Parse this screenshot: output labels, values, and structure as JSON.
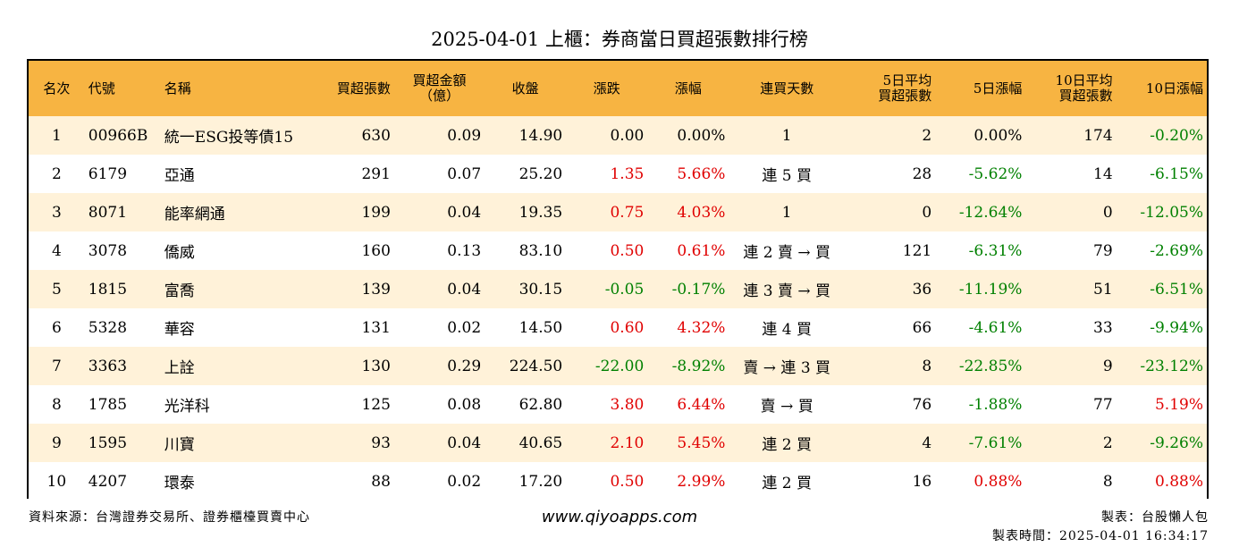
{
  "title": "2025-04-01 上櫃：券商當日買超張數排行榜",
  "headers": {
    "rank": "名次",
    "code": "代號",
    "name": "名稱",
    "buy_lots": [
      "買超張數"
    ],
    "buy_amount": [
      "買超金額",
      "（億）"
    ],
    "close": "收盤",
    "change": "漲跌",
    "change_pct": "漲幅",
    "consec_days": "連買天數",
    "avg5": [
      "5日平均",
      "買超張數"
    ],
    "pct5": "5日漲幅",
    "avg10": [
      "10日平均",
      "買超張數"
    ],
    "pct10": "10日漲幅"
  },
  "rows": [
    {
      "rank": "1",
      "code": "00966B",
      "name": "統一ESG投等債15",
      "lots": "630",
      "amount": "0.09",
      "close": "14.90",
      "change": "0.00",
      "change_pct": "0.00%",
      "days": "1",
      "avg5": "2",
      "pct5": "0.00%",
      "avg10": "174",
      "pct10": "-0.20%"
    },
    {
      "rank": "2",
      "code": "6179",
      "name": "亞通",
      "lots": "291",
      "amount": "0.07",
      "close": "25.20",
      "change": "1.35",
      "change_pct": "5.66%",
      "days": "連 5 買",
      "avg5": "28",
      "pct5": "-5.62%",
      "avg10": "14",
      "pct10": "-6.15%"
    },
    {
      "rank": "3",
      "code": "8071",
      "name": "能率網通",
      "lots": "199",
      "amount": "0.04",
      "close": "19.35",
      "change": "0.75",
      "change_pct": "4.03%",
      "days": "1",
      "avg5": "0",
      "pct5": "-12.64%",
      "avg10": "0",
      "pct10": "-12.05%"
    },
    {
      "rank": "4",
      "code": "3078",
      "name": "僑威",
      "lots": "160",
      "amount": "0.13",
      "close": "83.10",
      "change": "0.50",
      "change_pct": "0.61%",
      "days": "連 2 賣 → 買",
      "avg5": "121",
      "pct5": "-6.31%",
      "avg10": "79",
      "pct10": "-2.69%"
    },
    {
      "rank": "5",
      "code": "1815",
      "name": "富喬",
      "lots": "139",
      "amount": "0.04",
      "close": "30.15",
      "change": "-0.05",
      "change_pct": "-0.17%",
      "days": "連 3 賣 → 買",
      "avg5": "36",
      "pct5": "-11.19%",
      "avg10": "51",
      "pct10": "-6.51%"
    },
    {
      "rank": "6",
      "code": "5328",
      "name": "華容",
      "lots": "131",
      "amount": "0.02",
      "close": "14.50",
      "change": "0.60",
      "change_pct": "4.32%",
      "days": "連 4 買",
      "avg5": "66",
      "pct5": "-4.61%",
      "avg10": "33",
      "pct10": "-9.94%"
    },
    {
      "rank": "7",
      "code": "3363",
      "name": "上詮",
      "lots": "130",
      "amount": "0.29",
      "close": "224.50",
      "change": "-22.00",
      "change_pct": "-8.92%",
      "days": "賣 → 連 3 買",
      "avg5": "8",
      "pct5": "-22.85%",
      "avg10": "9",
      "pct10": "-23.12%"
    },
    {
      "rank": "8",
      "code": "1785",
      "name": "光洋科",
      "lots": "125",
      "amount": "0.08",
      "close": "62.80",
      "change": "3.80",
      "change_pct": "6.44%",
      "days": "賣 → 買",
      "avg5": "76",
      "pct5": "-1.88%",
      "avg10": "77",
      "pct10": "5.19%"
    },
    {
      "rank": "9",
      "code": "1595",
      "name": "川寶",
      "lots": "93",
      "amount": "0.04",
      "close": "40.65",
      "change": "2.10",
      "change_pct": "5.45%",
      "days": "連 2 買",
      "avg5": "4",
      "pct5": "-7.61%",
      "avg10": "2",
      "pct10": "-9.26%"
    },
    {
      "rank": "10",
      "code": "4207",
      "name": "環泰",
      "lots": "88",
      "amount": "0.02",
      "close": "17.20",
      "change": "0.50",
      "change_pct": "2.99%",
      "days": "連 2 買",
      "avg5": "16",
      "pct5": "0.88%",
      "avg10": "8",
      "pct10": "0.88%"
    }
  ],
  "footer": {
    "source": "資料來源：台灣證券交易所、證券櫃檯買賣中心",
    "site": "www.qiyoapps.com",
    "maker": "製表：台股懶人包",
    "time": "製表時間：2025-04-01 16:34:17"
  },
  "colors": {
    "header_bg": "#f7b442",
    "odd_row_bg": "#fff2d9",
    "positive": "#e00000",
    "negative": "#008000"
  }
}
